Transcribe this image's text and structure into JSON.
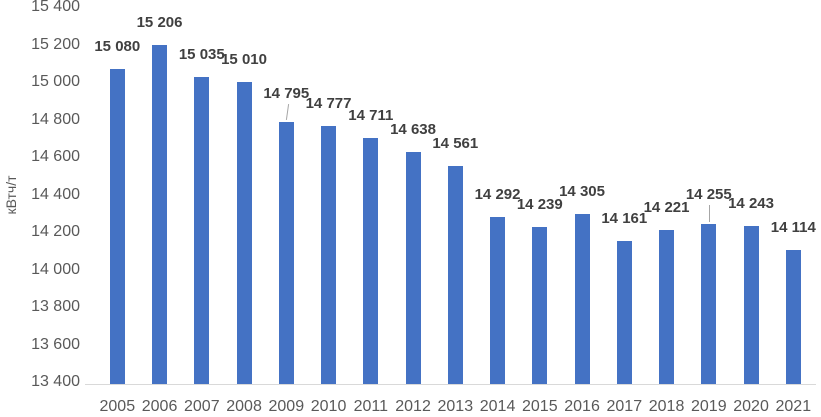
{
  "chart_data": {
    "type": "bar",
    "title": "",
    "xlabel": "",
    "ylabel": "кВтч/т",
    "categories": [
      "2005",
      "2006",
      "2007",
      "2008",
      "2009",
      "2010",
      "2011",
      "2012",
      "2013",
      "2014",
      "2015",
      "2016",
      "2017",
      "2018",
      "2019",
      "2020",
      "2021"
    ],
    "values": [
      15080,
      15206,
      15035,
      15010,
      14795,
      14777,
      14711,
      14638,
      14561,
      14292,
      14239,
      14305,
      14161,
      14221,
      14255,
      14243,
      14114
    ],
    "value_labels": [
      "15 080",
      "15 206",
      "15 035",
      "15 010",
      "14 795",
      "14 777",
      "14 711",
      "14 638",
      "14 561",
      "14 292",
      "14 239",
      "14 305",
      "14 161",
      "14 221",
      "14 255",
      "14 243",
      "14 114"
    ],
    "ytick_labels": [
      "15 400",
      "15 200",
      "15 000",
      "14 800",
      "14 600",
      "14 400",
      "14 200",
      "14 000",
      "13 800",
      "13 600",
      "13 400"
    ],
    "ylim": [
      13400,
      15400
    ],
    "ytick_step": 200,
    "grid": false,
    "legend": "none",
    "data_labels": true,
    "leader_line_indices": [
      4,
      14
    ],
    "colors": {
      "bar": "#4472C4",
      "data_label": "#404040",
      "axis_text": "#595959",
      "axis_line": "#D9D9D9",
      "leader_line": "#A6A6A6",
      "background": "#FFFFFF"
    }
  }
}
